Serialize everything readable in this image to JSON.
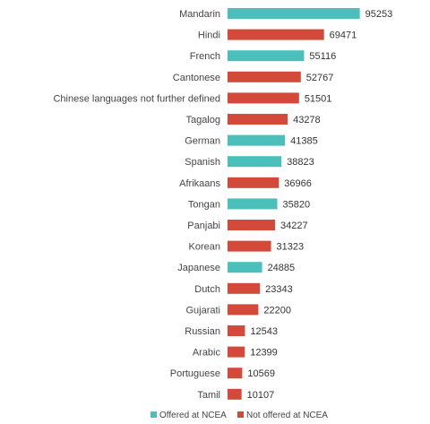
{
  "chart_data": {
    "type": "bar",
    "orientation": "horizontal",
    "categories": [
      "Mandarin",
      "Hindi",
      "French",
      "Cantonese",
      "Chinese languages not further defined",
      "Tagalog",
      "German",
      "Spanish",
      "Afrikaans",
      "Tongan",
      "Panjabi",
      "Korean",
      "Japanese",
      "Dutch",
      "Gujarati",
      "Russian",
      "Arabic",
      "Portuguese",
      "Tamil"
    ],
    "values": [
      95253,
      69471,
      55116,
      52767,
      51501,
      43278,
      41385,
      38823,
      36966,
      35820,
      34227,
      31323,
      24885,
      23343,
      22200,
      12543,
      12399,
      10569,
      10107
    ],
    "group": [
      "offered",
      "not_offered",
      "offered",
      "not_offered",
      "not_offered",
      "not_offered",
      "offered",
      "offered",
      "not_offered",
      "offered",
      "not_offered",
      "not_offered",
      "offered",
      "not_offered",
      "not_offered",
      "not_offered",
      "not_offered",
      "not_offered",
      "not_offered"
    ],
    "groups": {
      "offered": {
        "name": "Offered at NCEA",
        "color": "#4BBFBA"
      },
      "not_offered": {
        "name": "Not offered at NCEA",
        "color": "#D44A3A"
      }
    },
    "legend_order": [
      "offered",
      "not_offered"
    ],
    "xlim": [
      0,
      100000
    ],
    "axes_visible": false,
    "grid": false,
    "data_labels": true,
    "legend_position": "bottom"
  }
}
